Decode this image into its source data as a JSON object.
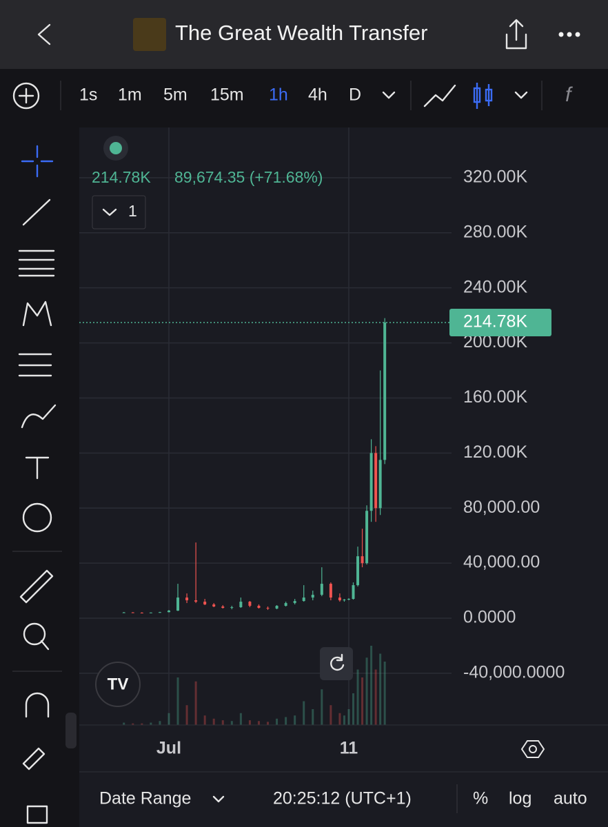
{
  "header": {
    "title": "The Great Wealth Transfer"
  },
  "toolbar": {
    "intervals": [
      "1s",
      "1m",
      "5m",
      "15m",
      "1h",
      "4h",
      "D"
    ],
    "active_interval": "1h"
  },
  "legend": {
    "change": "89,674.35 (+71.68%)",
    "indicator_count": "1"
  },
  "bottom_bar": {
    "date_range": "Date Range",
    "time": "20:25:12 (UTC+1)",
    "percent": "%",
    "log": "log",
    "auto": "auto"
  },
  "chart_data": {
    "type": "candlestick",
    "x": [
      -1.5,
      -1.0,
      -0.5,
      0.0,
      0.5,
      1.0,
      1.5,
      2.0,
      2.5,
      3.0,
      3.5,
      4.0,
      4.5,
      5.0,
      5.5,
      6.0,
      6.5,
      7.0,
      7.5,
      8.0,
      8.5,
      9.0,
      9.5,
      10.0,
      10.5,
      10.75,
      11.0,
      11.25,
      11.5,
      11.75,
      12.0,
      12.25,
      12.5,
      12.75,
      13.0
    ],
    "open": [
      4000,
      4200,
      4000,
      3900,
      4100,
      4400,
      5500,
      15000,
      13000,
      12000,
      10000,
      8500,
      7500,
      8000,
      12000,
      9000,
      7500,
      7000,
      9000,
      11000,
      12500,
      15000,
      17000,
      25000,
      15000,
      13000,
      13500,
      14000,
      24000,
      45000,
      40000,
      78000,
      120000,
      80000,
      115000
    ],
    "high": [
      4500,
      4400,
      4300,
      4200,
      4600,
      6000,
      25000,
      18000,
      55000,
      14000,
      11000,
      9500,
      9000,
      15000,
      12500,
      10000,
      8500,
      9500,
      12000,
      14000,
      24000,
      20000,
      37000,
      26000,
      18000,
      14000,
      14500,
      26000,
      52000,
      65000,
      82000,
      130000,
      125000,
      180000,
      218000
    ],
    "low": [
      3800,
      3900,
      3700,
      3700,
      3900,
      4200,
      5200,
      11000,
      11000,
      9500,
      8000,
      7000,
      6500,
      7500,
      8000,
      7000,
      6000,
      6500,
      8500,
      10000,
      12000,
      13000,
      16000,
      13000,
      12000,
      12000,
      13000,
      13500,
      23000,
      37000,
      39000,
      70000,
      70000,
      75000,
      112000
    ],
    "close": [
      4200,
      4000,
      3900,
      4100,
      4400,
      5500,
      15000,
      13000,
      12000,
      10000,
      8500,
      7500,
      8000,
      12000,
      9000,
      7500,
      7000,
      9000,
      11000,
      12500,
      15000,
      17000,
      25000,
      15000,
      13000,
      13500,
      14000,
      24000,
      45000,
      40000,
      78000,
      120000,
      80000,
      115000,
      214780
    ],
    "volume": [
      3,
      2,
      2,
      3,
      5,
      15,
      60,
      25,
      55,
      12,
      8,
      6,
      5,
      15,
      6,
      5,
      4,
      8,
      10,
      12,
      30,
      20,
      45,
      25,
      15,
      12,
      20,
      40,
      70,
      60,
      85,
      100,
      70,
      90,
      80
    ],
    "up_color": "#4fb594",
    "down_color": "#ef5350",
    "last_price": {
      "value": 214780,
      "label": "214.78K"
    },
    "xlim": [
      -3.98,
      16.71
    ],
    "xticks": [
      {
        "value": 1,
        "label": "Jul"
      },
      {
        "value": 11,
        "label": "11"
      }
    ],
    "ylim": [
      -77600,
      356500
    ],
    "yticks": [
      {
        "value": 320000,
        "label": "320.00K"
      },
      {
        "value": 280000,
        "label": "280.00K"
      },
      {
        "value": 240000,
        "label": "240.00K"
      },
      {
        "value": 200000,
        "label": "200.00K"
      },
      {
        "value": 160000,
        "label": "160.00K"
      },
      {
        "value": 120000,
        "label": "120.00K"
      },
      {
        "value": 80000,
        "label": "80,000.00"
      },
      {
        "value": 40000,
        "label": "40,000.00"
      },
      {
        "value": 0,
        "label": "0.0000"
      },
      {
        "value": -40000,
        "label": "-40,000.0000"
      }
    ],
    "grid": true
  }
}
